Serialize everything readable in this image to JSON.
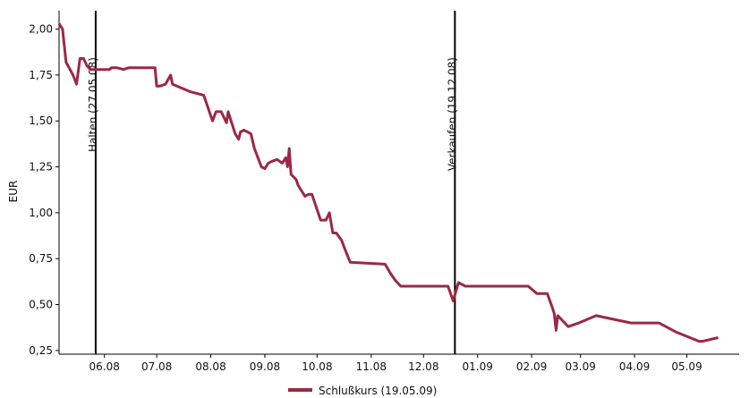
{
  "chart_data": {
    "type": "line",
    "title": "",
    "xlabel": "",
    "ylabel": "EUR",
    "ylim": [
      0.23,
      2.1
    ],
    "xlim": [
      "2008-05-06",
      "2009-05-31"
    ],
    "x_ticks": [
      "06.08",
      "07.08",
      "08.08",
      "09.08",
      "10.08",
      "11.08",
      "12.08",
      "01.09",
      "02.09",
      "03.09",
      "04.09",
      "05.09"
    ],
    "y_ticks": [
      "0,25",
      "0,50",
      "0,75",
      "1,00",
      "1,25",
      "1,50",
      "1,75",
      "2,00"
    ],
    "y_tick_values": [
      0.25,
      0.5,
      0.75,
      1.0,
      1.25,
      1.5,
      1.75,
      2.0
    ],
    "grid": false,
    "legend": "bottom",
    "line_color": "#9b2845",
    "series": [
      {
        "name": "Schlußkurs (19.05.09)",
        "color": "#9b2845",
        "x": [
          "2008-05-06",
          "2008-05-08",
          "2008-05-10",
          "2008-05-14",
          "2008-05-16",
          "2008-05-18",
          "2008-05-20",
          "2008-05-22",
          "2008-05-24",
          "2008-05-26",
          "2008-05-28",
          "2008-05-30",
          "2008-06-02",
          "2008-06-04",
          "2008-06-05",
          "2008-06-08",
          "2008-06-12",
          "2008-06-15",
          "2008-06-20",
          "2008-06-25",
          "2008-06-29",
          "2008-06-30",
          "2008-07-01",
          "2008-07-03",
          "2008-07-06",
          "2008-07-09",
          "2008-07-10",
          "2008-07-20",
          "2008-07-24",
          "2008-07-28",
          "2008-08-02",
          "2008-08-04",
          "2008-08-07",
          "2008-08-10",
          "2008-08-11",
          "2008-08-13",
          "2008-08-15",
          "2008-08-17",
          "2008-08-18",
          "2008-08-20",
          "2008-08-22",
          "2008-08-24",
          "2008-08-26",
          "2008-08-30",
          "2008-09-01",
          "2008-09-03",
          "2008-09-05",
          "2008-09-08",
          "2008-09-11",
          "2008-09-13",
          "2008-09-14",
          "2008-09-15",
          "2008-09-16",
          "2008-09-17",
          "2008-09-19",
          "2008-09-20",
          "2008-09-22",
          "2008-09-24",
          "2008-09-26",
          "2008-09-28",
          "2008-10-03",
          "2008-10-04",
          "2008-10-06",
          "2008-10-08",
          "2008-10-10",
          "2008-10-12",
          "2008-10-15",
          "2008-10-17",
          "2008-10-20",
          "2008-11-09",
          "2008-11-12",
          "2008-11-15",
          "2008-11-18",
          "2008-12-15",
          "2008-12-18",
          "2008-12-21",
          "2008-12-25",
          "2009-01-15",
          "2009-01-20",
          "2009-01-30",
          "2009-02-04",
          "2009-02-06",
          "2009-02-08",
          "2009-02-10",
          "2009-02-13",
          "2009-02-14",
          "2009-02-15",
          "2009-02-16",
          "2009-02-22",
          "2009-02-28",
          "2009-03-10",
          "2009-03-30",
          "2009-04-15",
          "2009-04-25",
          "2009-05-08",
          "2009-05-10",
          "2009-05-19"
        ],
        "values": [
          2.03,
          2.0,
          1.82,
          1.75,
          1.7,
          1.84,
          1.84,
          1.8,
          1.78,
          1.78,
          1.78,
          1.78,
          1.78,
          1.78,
          1.79,
          1.79,
          1.78,
          1.79,
          1.79,
          1.79,
          1.79,
          1.79,
          1.69,
          1.69,
          1.7,
          1.75,
          1.7,
          1.66,
          1.65,
          1.64,
          1.5,
          1.55,
          1.55,
          1.49,
          1.55,
          1.49,
          1.43,
          1.4,
          1.44,
          1.45,
          1.44,
          1.43,
          1.35,
          1.25,
          1.24,
          1.27,
          1.28,
          1.29,
          1.27,
          1.3,
          1.25,
          1.35,
          1.21,
          1.2,
          1.18,
          1.15,
          1.12,
          1.09,
          1.1,
          1.1,
          0.96,
          0.96,
          0.96,
          1.0,
          0.89,
          0.89,
          0.85,
          0.8,
          0.73,
          0.72,
          0.67,
          0.63,
          0.6,
          0.6,
          0.52,
          0.62,
          0.6,
          0.6,
          0.6,
          0.6,
          0.56,
          0.56,
          0.56,
          0.56,
          0.48,
          0.45,
          0.36,
          0.44,
          0.38,
          0.4,
          0.44,
          0.4,
          0.4,
          0.35,
          0.3,
          0.3,
          0.32
        ]
      }
    ],
    "annotations": [
      {
        "text": "Halten (27.05.08)",
        "x": "2008-05-27"
      },
      {
        "text": "Verkaufen (19.12.08)",
        "x": "2008-12-19"
      }
    ]
  }
}
